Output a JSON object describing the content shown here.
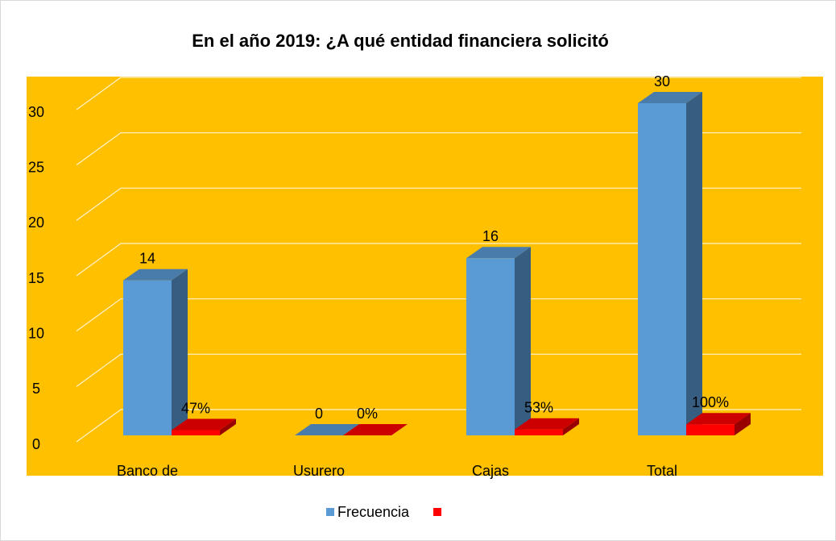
{
  "chart_data": {
    "type": "bar3d",
    "title": "En el año 2019: ¿A qué entidad financiera solicitó",
    "categories": [
      "Banco de",
      "Usurero",
      "Cajas",
      "Total"
    ],
    "series": [
      {
        "name": "Frecuencia",
        "color": "#5b9bd5",
        "values": [
          14,
          0,
          16,
          30
        ]
      },
      {
        "color": "#ff0000",
        "values": [
          0.47,
          0,
          0.53,
          1
        ],
        "value_labels": [
          "47%",
          "0%",
          "53%",
          "100%"
        ]
      }
    ],
    "ylim": [
      0,
      30
    ],
    "yticks": [
      0,
      5,
      10,
      15,
      20,
      25,
      30
    ],
    "grid": true,
    "legend": "bottom",
    "background": "#ffc000"
  }
}
